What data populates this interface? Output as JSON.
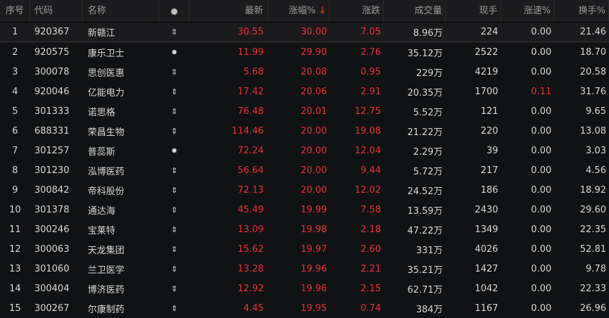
{
  "colors": {
    "up": "#e8323c",
    "text": "#d8d8d8",
    "header_bg": "#1c1c1e",
    "bg": "#111213"
  },
  "header": {
    "seq": "序号",
    "code": "代码",
    "name": "名称",
    "flag_icon": "dot-icon",
    "price": "最新",
    "pct": "涨幅%",
    "sort_icon": "↓",
    "change": "涨跌",
    "volume": "成交量",
    "last_vol": "现手",
    "speed": "涨速%",
    "turnover": "换手%"
  },
  "rows": [
    {
      "seq": "1",
      "code": "920367",
      "name": "新赣江",
      "flag": "⇕",
      "price": "30.55",
      "pct": "30.00",
      "change": "7.05",
      "volume": "8.96万",
      "last_vol": "224",
      "speed": "0.00",
      "turnover": "21.46"
    },
    {
      "seq": "2",
      "code": "920575",
      "name": "康乐卫士",
      "flag": "✸",
      "price": "11.99",
      "pct": "29.90",
      "change": "2.76",
      "volume": "35.12万",
      "last_vol": "2522",
      "speed": "0.00",
      "turnover": "18.70"
    },
    {
      "seq": "3",
      "code": "300078",
      "name": "思创医惠",
      "flag": "⇕",
      "price": "5.68",
      "pct": "20.08",
      "change": "0.95",
      "volume": "229万",
      "last_vol": "4219",
      "speed": "0.00",
      "turnover": "20.58"
    },
    {
      "seq": "4",
      "code": "920046",
      "name": "亿能电力",
      "flag": "⇕",
      "price": "17.42",
      "pct": "20.06",
      "change": "2.91",
      "volume": "20.35万",
      "last_vol": "1700",
      "speed": "0.11",
      "turnover": "31.76"
    },
    {
      "seq": "5",
      "code": "301333",
      "name": "诺思格",
      "flag": "⇕",
      "price": "76.48",
      "pct": "20.01",
      "change": "12.75",
      "volume": "5.52万",
      "last_vol": "121",
      "speed": "0.00",
      "turnover": "9.65"
    },
    {
      "seq": "6",
      "code": "688331",
      "name": "荣昌生物",
      "flag": "⇕",
      "price": "114.46",
      "pct": "20.00",
      "change": "19.08",
      "volume": "21.22万",
      "last_vol": "220",
      "speed": "0.00",
      "turnover": "13.08"
    },
    {
      "seq": "7",
      "code": "301257",
      "name": "普蕊斯",
      "flag": "✸",
      "price": "72.24",
      "pct": "20.00",
      "change": "12.04",
      "volume": "2.29万",
      "last_vol": "39",
      "speed": "0.00",
      "turnover": "3.03"
    },
    {
      "seq": "8",
      "code": "301230",
      "name": "泓博医药",
      "flag": "⇕",
      "price": "56.64",
      "pct": "20.00",
      "change": "9.44",
      "volume": "5.72万",
      "last_vol": "217",
      "speed": "0.00",
      "turnover": "4.56"
    },
    {
      "seq": "9",
      "code": "300842",
      "name": "帝科股份",
      "flag": "⇕",
      "price": "72.13",
      "pct": "20.00",
      "change": "12.02",
      "volume": "24.52万",
      "last_vol": "186",
      "speed": "0.00",
      "turnover": "18.92"
    },
    {
      "seq": "10",
      "code": "301378",
      "name": "通达海",
      "flag": "⇕",
      "price": "45.49",
      "pct": "19.99",
      "change": "7.58",
      "volume": "13.59万",
      "last_vol": "2430",
      "speed": "0.00",
      "turnover": "29.60"
    },
    {
      "seq": "11",
      "code": "300246",
      "name": "宝莱特",
      "flag": "⇕",
      "price": "13.09",
      "pct": "19.98",
      "change": "2.18",
      "volume": "47.22万",
      "last_vol": "1349",
      "speed": "0.00",
      "turnover": "22.35"
    },
    {
      "seq": "12",
      "code": "300063",
      "name": "天龙集团",
      "flag": "⇕",
      "price": "15.62",
      "pct": "19.97",
      "change": "2.60",
      "volume": "331万",
      "last_vol": "4026",
      "speed": "0.00",
      "turnover": "52.81"
    },
    {
      "seq": "13",
      "code": "301060",
      "name": "兰卫医学",
      "flag": "⇕",
      "price": "13.28",
      "pct": "19.96",
      "change": "2.21",
      "volume": "35.21万",
      "last_vol": "1427",
      "speed": "0.00",
      "turnover": "9.78"
    },
    {
      "seq": "14",
      "code": "300404",
      "name": "博济医药",
      "flag": "⇕",
      "price": "12.92",
      "pct": "19.96",
      "change": "2.15",
      "volume": "62.71万",
      "last_vol": "1042",
      "speed": "0.00",
      "turnover": "22.33"
    },
    {
      "seq": "15",
      "code": "300267",
      "name": "尔康制药",
      "flag": "⇕",
      "price": "4.45",
      "pct": "19.95",
      "change": "0.74",
      "volume": "384万",
      "last_vol": "1167",
      "speed": "0.00",
      "turnover": "26.96"
    }
  ]
}
